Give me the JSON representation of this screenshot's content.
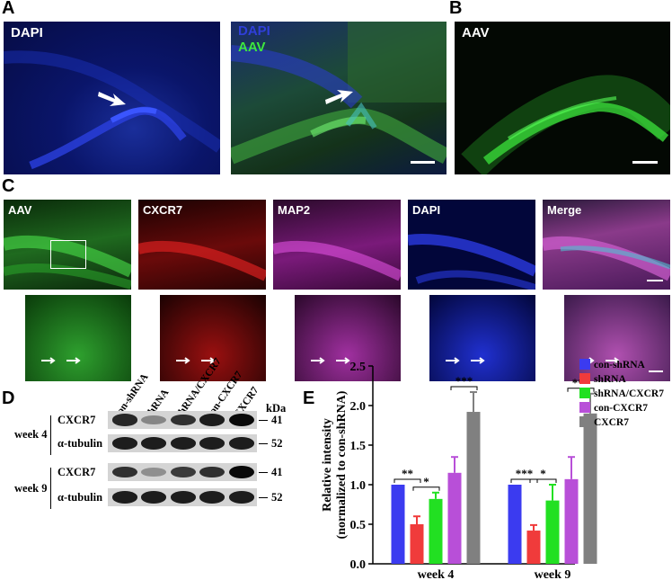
{
  "panels": {
    "A": {
      "letter": "A",
      "left_label": "DAPI",
      "right_label_1": "DAPI",
      "right_label_2": "AAV"
    },
    "B": {
      "letter": "B",
      "label": "AAV"
    },
    "C": {
      "letter": "C",
      "labels": [
        "AAV",
        "CXCR7",
        "MAP2",
        "DAPI",
        "Merge"
      ]
    },
    "D": {
      "letter": "D",
      "lanes": [
        "con-shRNA",
        "shRNA",
        "shRNA/CXCR7",
        "con-CXCR7",
        "CXCR7"
      ],
      "unit": "kDa",
      "groups": [
        {
          "label": "week 4",
          "rows": [
            {
              "protein": "CXCR7",
              "kda": "41",
              "intensities": [
                0.85,
                0.35,
                0.8,
                0.9,
                1.0
              ]
            },
            {
              "protein": "α-tubulin",
              "kda": "52",
              "intensities": [
                0.9,
                0.9,
                0.9,
                0.9,
                0.9
              ]
            }
          ]
        },
        {
          "label": "week 9",
          "rows": [
            {
              "protein": "CXCR7",
              "kda": "41",
              "intensities": [
                0.8,
                0.3,
                0.75,
                0.8,
                1.0
              ]
            },
            {
              "protein": "α-tubulin",
              "kda": "52",
              "intensities": [
                0.9,
                0.9,
                0.9,
                0.9,
                0.9
              ]
            }
          ]
        }
      ]
    },
    "E": {
      "letter": "E"
    }
  },
  "colors": {
    "con-shRNA": "#3b3bf0",
    "shRNA": "#f03b3b",
    "shRNA/CXCR7": "#22e022",
    "con-CXCR7": "#b84fd8",
    "CXCR7": "#808080"
  },
  "chart_data": {
    "type": "bar",
    "categories": [
      "week 4",
      "week 9"
    ],
    "ylabel_line1": "Relative intensity",
    "ylabel_line2": "(normalized to con-shRNA)",
    "ylim": [
      0,
      2.5
    ],
    "yticks": [
      "0.0",
      "0.5",
      "1.0",
      "1.5",
      "2.0",
      "2.5"
    ],
    "series": [
      {
        "name": "con-shRNA",
        "values": [
          1.0,
          1.0
        ],
        "errors": [
          0,
          0
        ]
      },
      {
        "name": "shRNA",
        "values": [
          0.5,
          0.42
        ],
        "errors": [
          0.1,
          0.07
        ]
      },
      {
        "name": "shRNA/CXCR7",
        "values": [
          0.82,
          0.8
        ],
        "errors": [
          0.08,
          0.2
        ]
      },
      {
        "name": "con-CXCR7",
        "values": [
          1.15,
          1.07
        ],
        "errors": [
          0.2,
          0.28
        ]
      },
      {
        "name": "CXCR7",
        "values": [
          1.92,
          1.9
        ],
        "errors": [
          0.25,
          0.25
        ]
      }
    ],
    "significance": [
      {
        "category": "week 4",
        "from": "con-shRNA",
        "to": "shRNA",
        "label": "**"
      },
      {
        "category": "week 4",
        "from": "shRNA",
        "to": "shRNA/CXCR7",
        "label": "*"
      },
      {
        "category": "week 4",
        "from": "con-CXCR7",
        "to": "CXCR7",
        "label": "***"
      },
      {
        "category": "week 9",
        "from": "con-shRNA",
        "to": "shRNA",
        "label": "***"
      },
      {
        "category": "week 9",
        "from": "shRNA",
        "to": "shRNA/CXCR7",
        "label": "*"
      },
      {
        "category": "week 9",
        "from": "con-CXCR7",
        "to": "CXCR7",
        "label": "***"
      }
    ],
    "legend_position": "top-right"
  }
}
